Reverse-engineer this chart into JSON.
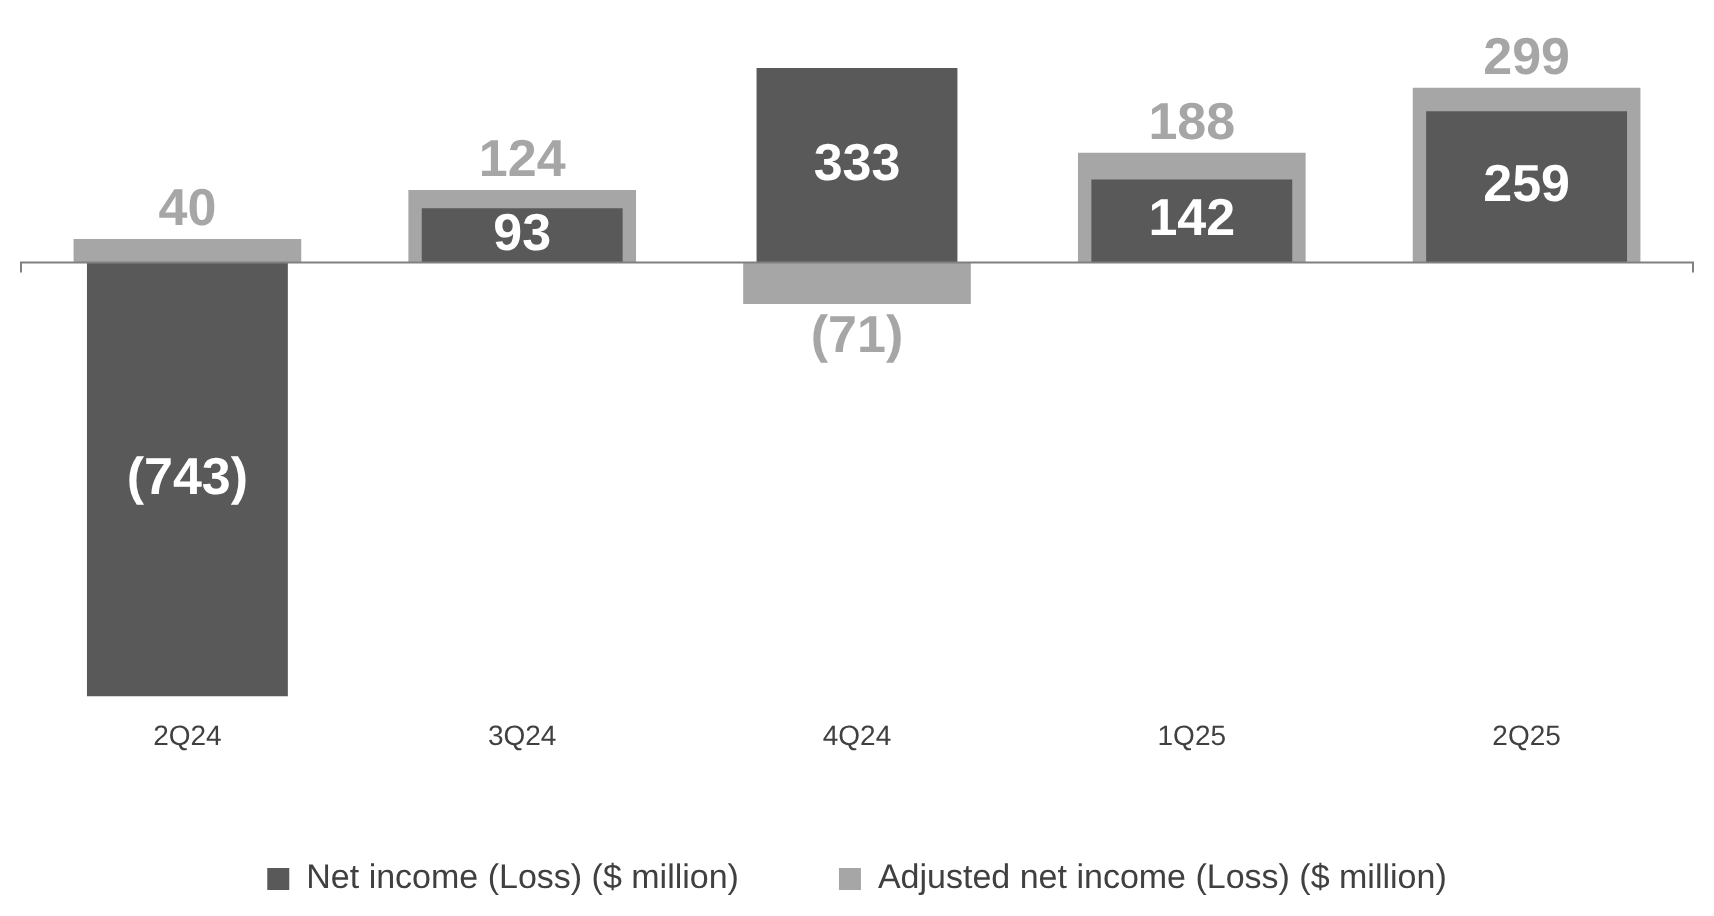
{
  "chart_data": {
    "type": "bar",
    "categories": [
      "2Q24",
      "3Q24",
      "4Q24",
      "1Q25",
      "2Q25"
    ],
    "series": [
      {
        "name": "Adjusted net income (Loss) ($ million)",
        "color": "#a6a6a6",
        "values": [
          40,
          124,
          -71,
          188,
          299
        ],
        "value_labels": [
          "40",
          "124",
          "(71)",
          "188",
          "299"
        ]
      },
      {
        "name": "Net income (Loss) ($ million)",
        "color": "#595959",
        "values": [
          -743,
          93,
          333,
          142,
          259
        ],
        "value_labels": [
          "(743)",
          "93",
          "333",
          "142",
          "259"
        ]
      }
    ],
    "legend": "bottom"
  }
}
